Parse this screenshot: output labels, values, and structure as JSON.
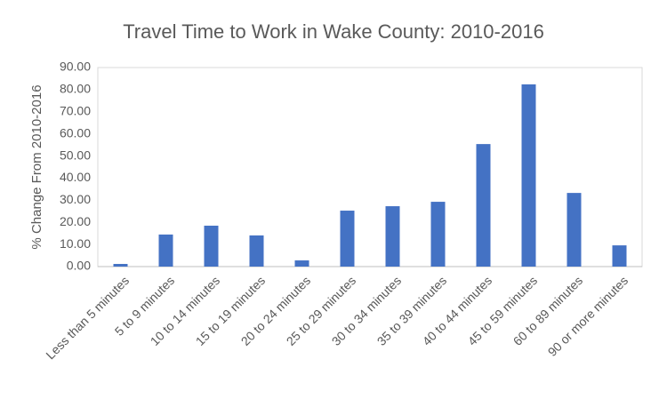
{
  "chart_data": {
    "type": "bar",
    "title": "Travel Time to Work in Wake County: 2010-2016",
    "y_label": "% Change From 2010-2016",
    "categories": [
      "Less than 5 minutes",
      "5 to 9 minutes",
      "10 to 14 minutes",
      "15 to 19 minutes",
      "20 to 24 minutes",
      "25 to 29 minutes",
      "30 to 34 minutes",
      "35 to 39 minutes",
      "40 to 44 minutes",
      "45 to 59 minutes",
      "60 to 89 minutes",
      "90 or more minutes"
    ],
    "values": [
      1.2,
      14.5,
      18.5,
      14.1,
      2.8,
      25.3,
      27.3,
      29.3,
      55.4,
      82.4,
      33.3,
      9.6
    ],
    "color": "#4472c4",
    "ylim": [
      0,
      90
    ],
    "yticks": [
      {
        "value": 0,
        "label": "0.00"
      },
      {
        "value": 10,
        "label": "10.00"
      },
      {
        "value": 20,
        "label": "20.00"
      },
      {
        "value": 30,
        "label": "30.00"
      },
      {
        "value": 40,
        "label": "40.00"
      },
      {
        "value": 50,
        "label": "50.00"
      },
      {
        "value": 60,
        "label": "60.00"
      },
      {
        "value": 70,
        "label": "70.00"
      },
      {
        "value": 80,
        "label": "80.00"
      },
      {
        "value": 90,
        "label": "90.00"
      }
    ],
    "grid": false
  }
}
